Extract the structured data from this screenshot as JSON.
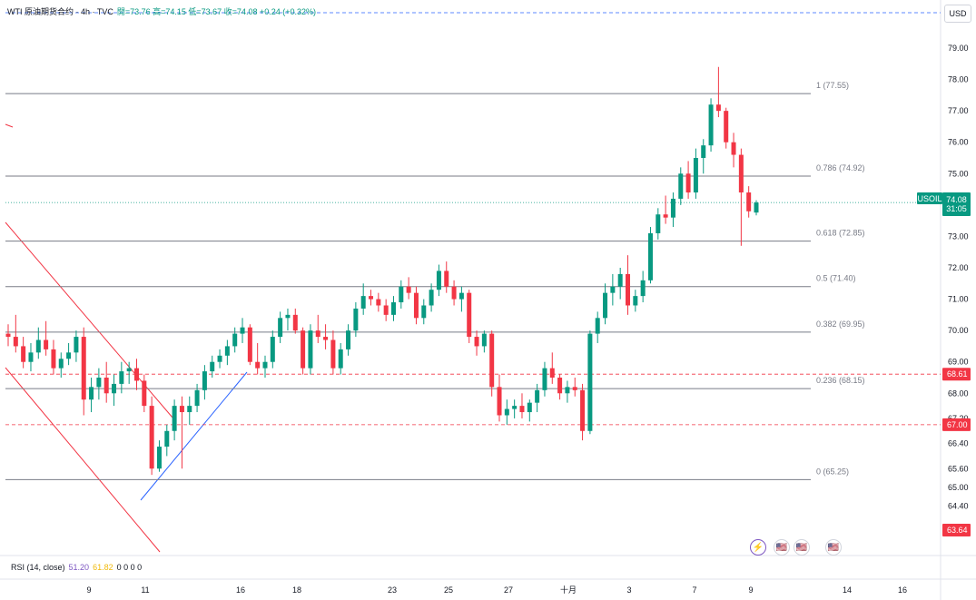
{
  "header": {
    "title": "WTI 原油期货合约 · 4h · TVC",
    "values": "開=73.76  高=74.15  低=73.67  收=74.08  +0.24 (+0.32%)"
  },
  "currency_button": "USD",
  "rsi": {
    "label": "RSI (14, close)",
    "value1": "51.20",
    "value2": "61.82",
    "extras": "0  0  0  0"
  },
  "symbol_tag": {
    "symbol": "USOIL",
    "price": "74.08",
    "countdown": "31:05"
  },
  "colors": {
    "up": "#089981",
    "down": "#f23645",
    "fib": "#787b86",
    "trend": "#2962ff",
    "channel": "#f23645"
  },
  "events": [
    {
      "icon": "lightning-icon",
      "glyph": "⚡"
    },
    {
      "icon": "us-flag-icon",
      "glyph": "🇺🇸"
    },
    {
      "icon": "us-flag-icon",
      "glyph": "🇺🇸"
    },
    {
      "icon": "us-flag-icon",
      "glyph": "🇺🇸"
    }
  ],
  "chart_data": {
    "type": "candlestick",
    "ylim": [
      63.64,
      79.5
    ],
    "y_ticks": [
      "79.00",
      "78.00",
      "77.00",
      "76.00",
      "75.00",
      "74.00",
      "73.00",
      "72.00",
      "71.00",
      "70.00",
      "69.00",
      "68.00",
      "67.20",
      "66.40",
      "65.60",
      "65.00",
      "64.40"
    ],
    "x_ticks": [
      "9",
      "11",
      "16",
      "18",
      "23",
      "25",
      "27",
      "十月",
      "3",
      "7",
      "9",
      "14",
      "16"
    ],
    "fib_levels": [
      {
        "label": "1 (77.55)",
        "value": 77.55
      },
      {
        "label": "0.786 (74.92)",
        "value": 74.92
      },
      {
        "label": "0.618 (72.85)",
        "value": 72.85
      },
      {
        "label": "0.5 (71.40)",
        "value": 71.4
      },
      {
        "label": "0.382 (69.95)",
        "value": 69.95
      },
      {
        "label": "0.236 (68.15)",
        "value": 68.15
      },
      {
        "label": "0 (65.25)",
        "value": 65.25
      }
    ],
    "price_tags": [
      {
        "label": "68.61",
        "value": 68.61,
        "color": "#f23645"
      },
      {
        "label": "67.00",
        "value": 67.0,
        "color": "#f23645"
      },
      {
        "label": "63.64",
        "value": 63.64,
        "color": "#f23645"
      }
    ],
    "last_price": 74.08,
    "candles": [
      [
        69.9,
        70.2,
        69.5,
        69.8
      ],
      [
        69.8,
        70.5,
        69.3,
        69.5
      ],
      [
        69.5,
        69.8,
        68.8,
        69.0
      ],
      [
        69.0,
        69.6,
        68.7,
        69.3
      ],
      [
        69.3,
        70.1,
        69.1,
        69.7
      ],
      [
        69.7,
        70.3,
        69.2,
        69.4
      ],
      [
        69.4,
        69.7,
        68.6,
        68.8
      ],
      [
        68.8,
        69.3,
        68.5,
        69.1
      ],
      [
        69.1,
        69.6,
        68.9,
        69.3
      ],
      [
        69.3,
        70.0,
        69.0,
        69.8
      ],
      [
        69.8,
        70.1,
        67.3,
        67.8
      ],
      [
        67.8,
        68.5,
        67.4,
        68.2
      ],
      [
        68.2,
        68.8,
        67.8,
        68.5
      ],
      [
        68.5,
        69.0,
        67.7,
        68.0
      ],
      [
        68.0,
        68.6,
        67.6,
        68.3
      ],
      [
        68.3,
        69.0,
        68.0,
        68.7
      ],
      [
        68.7,
        69.0,
        68.3,
        68.8
      ],
      [
        68.8,
        69.1,
        68.1,
        68.4
      ],
      [
        68.4,
        68.6,
        67.4,
        67.6
      ],
      [
        67.6,
        67.9,
        65.4,
        65.6
      ],
      [
        65.6,
        66.5,
        65.5,
        66.3
      ],
      [
        66.3,
        67.0,
        66.0,
        66.8
      ],
      [
        66.8,
        67.8,
        66.5,
        67.6
      ],
      [
        67.6,
        67.9,
        65.6,
        67.4
      ],
      [
        67.4,
        67.9,
        67.0,
        67.6
      ],
      [
        67.6,
        68.3,
        67.4,
        68.1
      ],
      [
        68.1,
        68.9,
        67.8,
        68.7
      ],
      [
        68.7,
        69.2,
        68.5,
        69.0
      ],
      [
        69.0,
        69.4,
        68.8,
        69.2
      ],
      [
        69.2,
        69.7,
        68.9,
        69.5
      ],
      [
        69.5,
        70.1,
        69.3,
        69.9
      ],
      [
        69.9,
        70.4,
        69.6,
        70.1
      ],
      [
        70.1,
        70.2,
        68.9,
        69.0
      ],
      [
        69.0,
        69.6,
        68.6,
        68.8
      ],
      [
        68.8,
        69.2,
        68.5,
        69.0
      ],
      [
        69.0,
        70.0,
        68.8,
        69.8
      ],
      [
        69.8,
        70.6,
        69.6,
        70.4
      ],
      [
        70.4,
        70.7,
        70.0,
        70.5
      ],
      [
        70.5,
        70.7,
        69.9,
        70.0
      ],
      [
        70.0,
        70.1,
        68.6,
        68.8
      ],
      [
        68.8,
        70.2,
        68.6,
        70.0
      ],
      [
        70.0,
        70.5,
        69.6,
        69.8
      ],
      [
        69.8,
        70.2,
        69.4,
        69.7
      ],
      [
        69.7,
        70.0,
        68.6,
        68.8
      ],
      [
        68.8,
        69.6,
        68.6,
        69.4
      ],
      [
        69.4,
        70.2,
        69.2,
        70.0
      ],
      [
        70.0,
        70.9,
        69.8,
        70.7
      ],
      [
        70.7,
        71.5,
        70.5,
        71.1
      ],
      [
        71.1,
        71.3,
        70.8,
        71.0
      ],
      [
        71.0,
        71.2,
        70.6,
        70.8
      ],
      [
        70.8,
        71.0,
        70.3,
        70.5
      ],
      [
        70.5,
        71.1,
        70.3,
        70.9
      ],
      [
        70.9,
        71.6,
        70.7,
        71.4
      ],
      [
        71.4,
        71.7,
        71.0,
        71.2
      ],
      [
        71.2,
        71.4,
        70.2,
        70.4
      ],
      [
        70.4,
        71.0,
        70.2,
        70.8
      ],
      [
        70.8,
        71.5,
        70.6,
        71.3
      ],
      [
        71.3,
        72.1,
        71.1,
        71.9
      ],
      [
        71.9,
        72.2,
        71.2,
        71.4
      ],
      [
        71.4,
        71.6,
        70.8,
        71.0
      ],
      [
        71.0,
        71.4,
        70.6,
        71.2
      ],
      [
        71.2,
        71.3,
        69.6,
        69.8
      ],
      [
        69.8,
        70.0,
        69.2,
        69.5
      ],
      [
        69.5,
        70.0,
        69.3,
        69.9
      ],
      [
        69.9,
        70.0,
        67.9,
        68.2
      ],
      [
        68.2,
        68.6,
        67.1,
        67.3
      ],
      [
        67.3,
        67.8,
        67.0,
        67.5
      ],
      [
        67.5,
        67.8,
        67.2,
        67.6
      ],
      [
        67.6,
        68.0,
        67.2,
        67.4
      ],
      [
        67.4,
        67.8,
        67.1,
        67.7
      ],
      [
        67.7,
        68.3,
        67.4,
        68.1
      ],
      [
        68.1,
        69.0,
        67.9,
        68.8
      ],
      [
        68.8,
        69.3,
        68.3,
        68.5
      ],
      [
        68.5,
        68.6,
        67.8,
        68.0
      ],
      [
        68.0,
        68.4,
        67.7,
        68.2
      ],
      [
        68.2,
        68.5,
        67.9,
        68.1
      ],
      [
        68.1,
        68.3,
        66.5,
        66.8
      ],
      [
        66.8,
        70.0,
        66.7,
        69.9
      ],
      [
        69.9,
        70.6,
        69.6,
        70.4
      ],
      [
        70.4,
        71.5,
        70.2,
        71.2
      ],
      [
        71.2,
        71.8,
        70.8,
        71.4
      ],
      [
        71.4,
        72.0,
        71.0,
        71.8
      ],
      [
        71.8,
        72.4,
        70.5,
        70.8
      ],
      [
        70.8,
        71.3,
        70.6,
        71.1
      ],
      [
        71.1,
        71.9,
        70.9,
        71.6
      ],
      [
        71.6,
        73.3,
        71.5,
        73.1
      ],
      [
        73.1,
        73.9,
        72.9,
        73.7
      ],
      [
        73.7,
        74.3,
        73.4,
        73.6
      ],
      [
        73.6,
        74.4,
        73.3,
        74.2
      ],
      [
        74.2,
        75.2,
        74.0,
        75.0
      ],
      [
        75.0,
        75.4,
        74.2,
        74.4
      ],
      [
        74.4,
        75.8,
        74.2,
        75.5
      ],
      [
        75.5,
        76.1,
        75.0,
        75.9
      ],
      [
        75.9,
        77.4,
        75.7,
        77.2
      ],
      [
        77.2,
        78.4,
        76.8,
        77.0
      ],
      [
        77.0,
        77.1,
        75.8,
        76.0
      ],
      [
        76.0,
        76.3,
        75.2,
        75.6
      ],
      [
        75.6,
        75.8,
        72.7,
        74.4
      ],
      [
        74.4,
        74.6,
        73.6,
        73.8
      ],
      [
        73.76,
        74.15,
        73.67,
        74.08
      ]
    ]
  }
}
